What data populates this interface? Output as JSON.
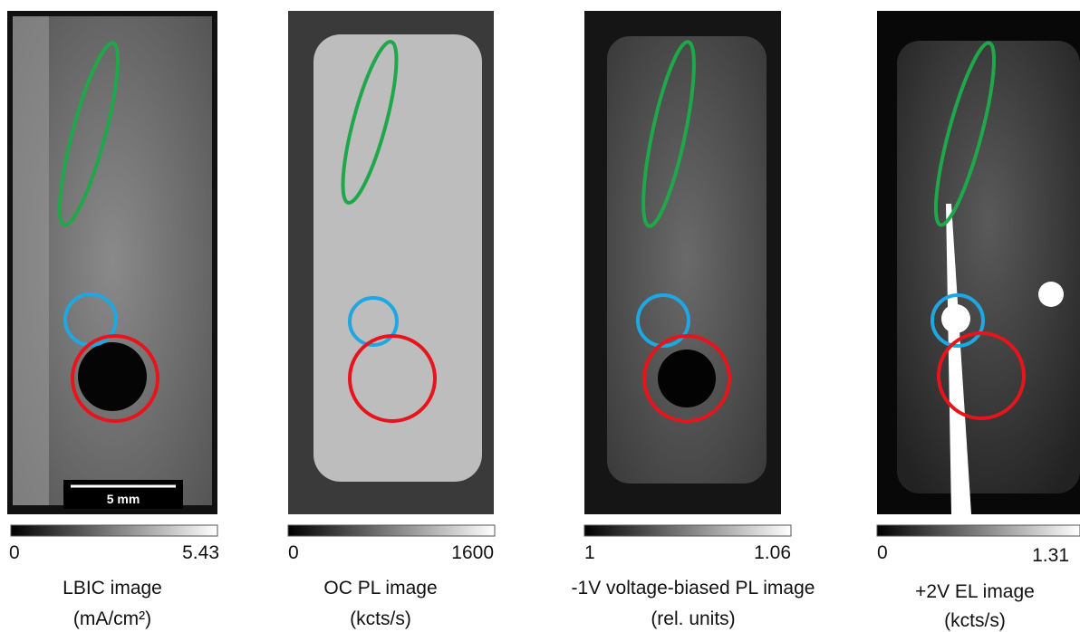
{
  "panels": [
    {
      "colorbar_min": "0",
      "colorbar_max": "5.43",
      "title": "LBIC image",
      "unit": "(mA/cm²)"
    },
    {
      "colorbar_min": "0",
      "colorbar_max": "1600",
      "title": "OC PL image",
      "unit": "(kcts/s)"
    },
    {
      "colorbar_min": "1",
      "colorbar_max": "1.06",
      "title": "-1V voltage-biased PL image",
      "unit": "(rel. units)"
    },
    {
      "colorbar_min": "0",
      "colorbar_max": "1.31",
      "title": "+2V EL image",
      "unit": "(kcts/s)"
    }
  ],
  "scalebar": "5 mm"
}
